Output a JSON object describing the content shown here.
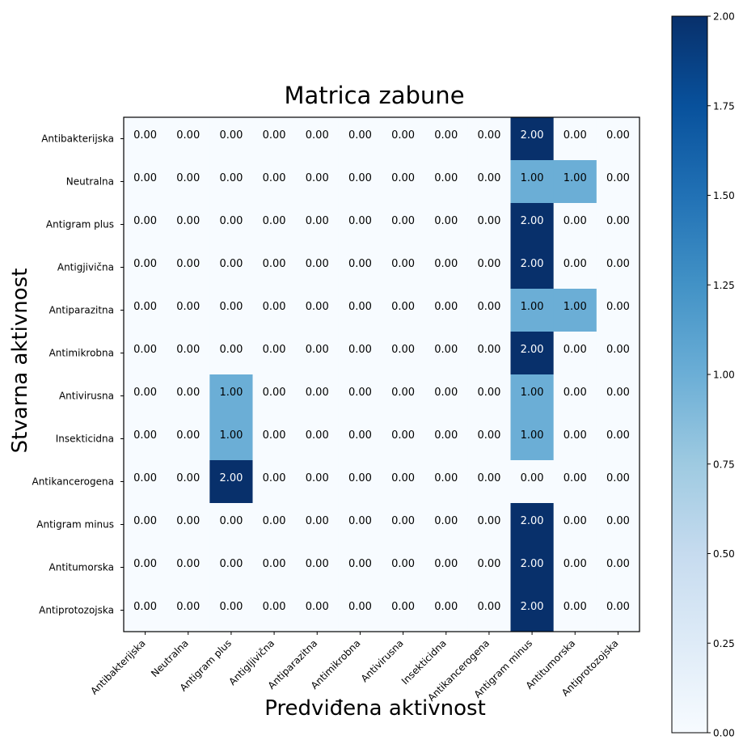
{
  "chart_data": {
    "type": "heatmap",
    "title": "Matrica zabune",
    "xlabel": "Predviđena aktivnost",
    "ylabel": "Stvarna aktivnost",
    "x_categories": [
      "Antibakterijska",
      "Neutralna",
      "Antigram plus",
      "Antigljivična",
      "Antiparazitna",
      "Antimikrobna",
      "Antivirusna",
      "Insekticidna",
      "Antikancerogena",
      "Antigram minus",
      "Antitumorska",
      "Antiprotozojska"
    ],
    "y_categories": [
      "Antibakterijska",
      "Neutralna",
      "Antigram plus ",
      "Antigjivična ",
      "Antiparazitna",
      "Antimikrobna",
      "Antivirusna ",
      "Insekticidna ",
      "Antikancerogena",
      "Antigram minus",
      "Antitumorska",
      "Antiprotozojska"
    ],
    "values": [
      [
        0,
        0,
        0,
        0,
        0,
        0,
        0,
        0,
        0,
        2,
        0,
        0
      ],
      [
        0,
        0,
        0,
        0,
        0,
        0,
        0,
        0,
        0,
        1,
        1,
        0
      ],
      [
        0,
        0,
        0,
        0,
        0,
        0,
        0,
        0,
        0,
        2,
        0,
        0
      ],
      [
        0,
        0,
        0,
        0,
        0,
        0,
        0,
        0,
        0,
        2,
        0,
        0
      ],
      [
        0,
        0,
        0,
        0,
        0,
        0,
        0,
        0,
        0,
        1,
        1,
        0
      ],
      [
        0,
        0,
        0,
        0,
        0,
        0,
        0,
        0,
        0,
        2,
        0,
        0
      ],
      [
        0,
        0,
        1,
        0,
        0,
        0,
        0,
        0,
        0,
        1,
        0,
        0
      ],
      [
        0,
        0,
        1,
        0,
        0,
        0,
        0,
        0,
        0,
        1,
        0,
        0
      ],
      [
        0,
        0,
        2,
        0,
        0,
        0,
        0,
        0,
        0,
        0,
        0,
        0
      ],
      [
        0,
        0,
        0,
        0,
        0,
        0,
        0,
        0,
        0,
        2,
        0,
        0
      ],
      [
        0,
        0,
        0,
        0,
        0,
        0,
        0,
        0,
        0,
        2,
        0,
        0
      ],
      [
        0,
        0,
        0,
        0,
        0,
        0,
        0,
        0,
        0,
        2,
        0,
        0
      ]
    ],
    "value_format": "0.00",
    "colormap": "Blues",
    "colors": {
      "low": "#f7fbff",
      "mid": "#6baed6",
      "high": "#08306b"
    },
    "colorbar": {
      "range": [
        0,
        2
      ],
      "ticks": [
        "0.00",
        "0.25",
        "0.50",
        "0.75",
        "1.00",
        "1.25",
        "1.50",
        "1.75",
        "2.00"
      ]
    }
  }
}
